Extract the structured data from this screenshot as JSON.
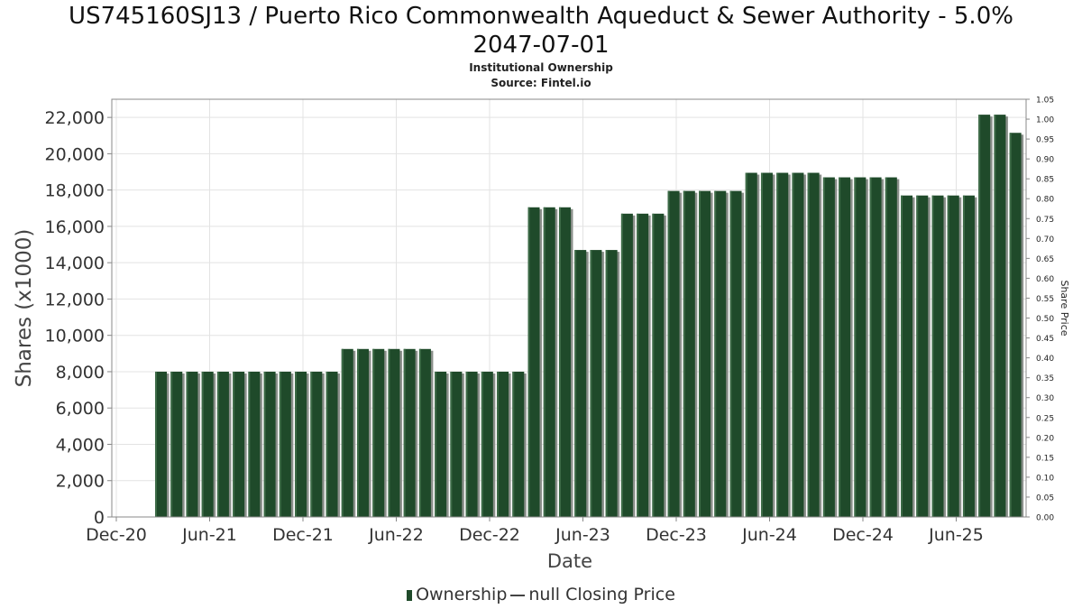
{
  "title_line1": "US745160SJ13 / Puerto Rico Commonwealth Aqueduct & Sewer Authority - 5.0%",
  "title_line2": "2047-07-01",
  "subtitle1": "Institutional Ownership",
  "subtitle2": "Source: Fintel.io",
  "legend": {
    "ownership": "Ownership",
    "price": "null Closing Price"
  },
  "colors": {
    "bar": "#1f4a2a",
    "bar_shadow": "#8a8f8a",
    "grid": "#e3e3e3",
    "axis": "#888888"
  },
  "chart_data": {
    "type": "bar",
    "xlabel": "Date",
    "ylabel": "Shares (x1000)",
    "y2label": "Share Price",
    "ylim": [
      0,
      23000
    ],
    "y2lim": [
      0,
      1.05
    ],
    "yticks": [
      0,
      2000,
      4000,
      6000,
      8000,
      10000,
      12000,
      14000,
      16000,
      18000,
      20000,
      22000
    ],
    "ytick_labels": [
      "0",
      "2,000",
      "4,000",
      "6,000",
      "8,000",
      "10,000",
      "12,000",
      "14,000",
      "16,000",
      "18,000",
      "20,000",
      "22,000"
    ],
    "y2ticks": [
      "0.00",
      "0.05",
      "0.10",
      "0.15",
      "0.20",
      "0.25",
      "0.30",
      "0.35",
      "0.40",
      "0.45",
      "0.50",
      "0.55",
      "0.60",
      "0.65",
      "0.70",
      "0.75",
      "0.80",
      "0.85",
      "0.90",
      "0.95",
      "1.00",
      "1.05"
    ],
    "xticks": [
      "Dec-20",
      "Jun-21",
      "Dec-21",
      "Jun-22",
      "Dec-22",
      "Jun-23",
      "Dec-23",
      "Jun-24",
      "Dec-24",
      "Jun-25"
    ],
    "grid": true,
    "legend_position": "bottom",
    "series": [
      {
        "name": "Ownership",
        "values": [
          8000,
          8000,
          8000,
          8000,
          8000,
          8000,
          8000,
          8000,
          8000,
          8000,
          8000,
          8000,
          9250,
          9250,
          9250,
          9250,
          9250,
          9250,
          8000,
          8000,
          8000,
          8000,
          8000,
          8000,
          17050,
          17050,
          17050,
          14700,
          14700,
          14700,
          16700,
          16700,
          16700,
          17950,
          17950,
          17950,
          17950,
          17950,
          18950,
          18950,
          18950,
          18950,
          18950,
          18700,
          18700,
          18700,
          18700,
          18700,
          17700,
          17700,
          17700,
          17700,
          17700,
          22150,
          22150,
          21150
        ]
      }
    ]
  }
}
